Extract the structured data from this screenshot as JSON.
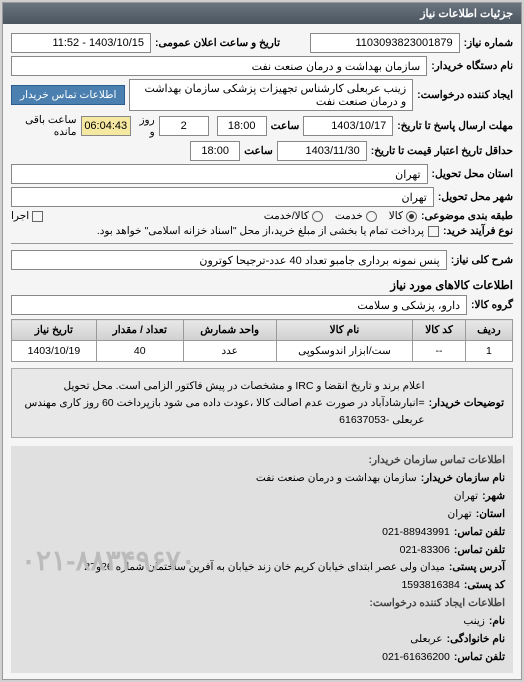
{
  "panel_title": "جزئیات اطلاعات نیاز",
  "fields": {
    "need_no_label": "شماره نیاز:",
    "need_no": "1103093823001879",
    "announce_label": "تاریخ و ساعت اعلان عمومی:",
    "announce": "1403/10/15 - 11:52",
    "buyer_label": "نام دستگاه خریدار:",
    "buyer": "سازمان بهداشت و درمان صنعت نفت",
    "creator_label": "ایجاد کننده درخواست:",
    "creator": "زینب عربعلی کارشناس تجهیزات پزشکی سازمان بهداشت و درمان صنعت نفت",
    "contact_btn": "اطلاعات تماس خریدار",
    "deadline_label": "مهلت ارسال پاسخ تا تاریخ:",
    "deadline_date": "1403/10/17",
    "time_label": "ساعت",
    "deadline_time": "18:00",
    "days_left": "2",
    "days_word": "روز و",
    "countdown": "06:04:43",
    "remain": "ساعت باقی مانده",
    "validity_label": "حداقل تاریخ اعتبار قیمت تا تاریخ:",
    "validity_date": "1403/11/30",
    "validity_time": "18:00",
    "province_label": "استان محل تحویل:",
    "province": "تهران",
    "city_label": "شهر محل تحویل:",
    "city": "تهران",
    "classify_label": "طبقه بندی موضوعی:",
    "opt_kala": "کالا",
    "opt_khadamat": "خدمت",
    "opt_both": "کالا/خدمت",
    "ejra_label": "اجرا",
    "payment_label": "نوع فرآیند خرید:",
    "payment_note": "پرداخت تمام یا بخشی از مبلغ خرید،از محل \"اسناد خزانه اسلامی\" خواهد بود.",
    "keyword_label": "شرح کلی نیاز:",
    "keyword": "پنس نمونه برداری جامبو تعداد 40 عدد-ترجیحا کوترون",
    "goods_section": "اطلاعات کالاهای مورد نیاز",
    "group_label": "گروه کالا:",
    "group": "دارو، پزشکی و سلامت"
  },
  "table": {
    "headers": [
      "ردیف",
      "کد کالا",
      "نام کالا",
      "واحد شمارش",
      "تعداد / مقدار",
      "تاریخ نیاز"
    ],
    "rows": [
      [
        "1",
        "--",
        "ست/ابزار اندوسکوپی",
        "عدد",
        "40",
        "1403/10/19"
      ]
    ]
  },
  "specs": {
    "label": "توضیحات خریدار:",
    "text": "اعلام برند و تاریخ انقضا و IRC و مشخصات در پیش فاکتور الزامی است. محل تحویل =انبارشادآباد در صورت عدم اصالت کالا ،عودت داده می شود بازپرداخت 60 روز کاری مهندس عربعلی -61637053"
  },
  "contact": {
    "header1": "اطلاعات تماس سازمان خریدار:",
    "org_label": "نام سازمان خریدار:",
    "org": "سازمان بهداشت و درمان صنعت نفت",
    "city_label": "شهر:",
    "city": "تهران",
    "province_label": "استان:",
    "province": "تهران",
    "phone_label": "تلفن تماس:",
    "phone": "021-88943991",
    "fax_label": "تلفن تماس:",
    "fax": "021-83306",
    "addr_label": "آدرس پستی:",
    "addr": "میدان ولی عصر ابتدای خیابان کریم خان زند خیابان به آفرین ساختمان شماره 26و27",
    "post_label": "کد پستی:",
    "post": "1593816384",
    "header2": "اطلاعات ایجاد کننده درخواست:",
    "name_label": "نام:",
    "name": "زینب",
    "family_label": "نام خانوادگی:",
    "family": "عربعلی",
    "phone2_label": "تلفن تماس:",
    "phone2": "021-61636200",
    "big_phone": "۰۲۱-۸۸۳۴۹۶۷۰"
  }
}
